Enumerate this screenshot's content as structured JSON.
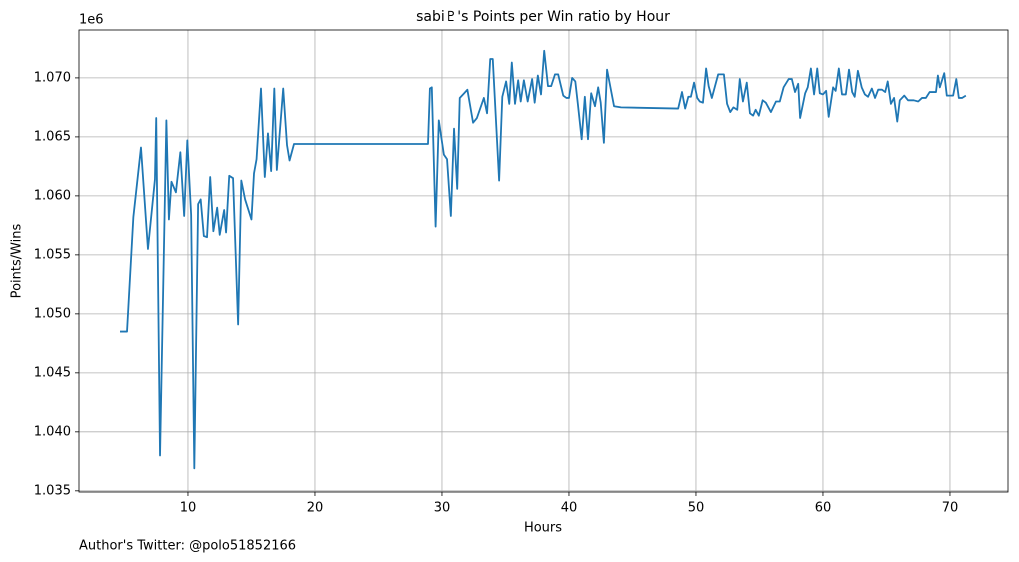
{
  "chart_data": {
    "type": "line",
    "title": "sabi♇'s Points per Win ratio by Hour",
    "x_label": "Hours",
    "y_label": "Points/Wins",
    "y_offset_label": "1e6",
    "footnote": "Author's Twitter: @polo51852166",
    "grid": true,
    "xlim": [
      1.42,
      74.57
    ],
    "ylim": [
      1.0349,
      1.07406
    ],
    "xticks": [
      10,
      20,
      30,
      40,
      50,
      60,
      70
    ],
    "yticks": [
      1.035,
      {
        "value": 1.04,
        "label": "1.040"
      },
      1.045,
      {
        "value": 1.05,
        "label": "1.050"
      },
      1.055,
      {
        "value": 1.06,
        "label": "1.060"
      },
      1.065,
      {
        "value": 1.07,
        "label": "1.070"
      }
    ],
    "series": [
      {
        "color": "#1f77b4",
        "x": [
          4.65,
          5.2,
          5.7,
          6.3,
          6.85,
          7.4,
          7.5,
          7.8,
          8.3,
          8.5,
          8.7,
          9.05,
          9.4,
          9.7,
          9.95,
          10.25,
          10.5,
          10.8,
          11.0,
          11.25,
          11.5,
          11.75,
          12.0,
          12.3,
          12.5,
          12.85,
          13.0,
          13.25,
          13.55,
          13.95,
          14.2,
          14.5,
          15.0,
          15.2,
          15.4,
          15.75,
          16.05,
          16.3,
          16.55,
          16.8,
          17.0,
          17.5,
          17.8,
          18.0,
          18.35,
          28.9,
          29.05,
          29.2,
          29.5,
          29.75,
          30.15,
          30.4,
          30.7,
          30.95,
          31.2,
          31.4,
          31.75,
          32.0,
          32.45,
          32.75,
          33.3,
          33.55,
          33.8,
          34.0,
          34.5,
          34.75,
          35.05,
          35.3,
          35.5,
          35.75,
          36.0,
          36.2,
          36.45,
          36.75,
          37.1,
          37.3,
          37.55,
          37.8,
          38.05,
          38.35,
          38.6,
          38.9,
          39.15,
          39.55,
          39.8,
          40.0,
          40.25,
          40.5,
          40.7,
          41.0,
          41.25,
          41.5,
          41.75,
          42.05,
          42.3,
          42.5,
          42.75,
          43.0,
          43.55,
          44.1,
          48.6,
          48.9,
          49.15,
          49.4,
          49.6,
          49.85,
          50.1,
          50.3,
          50.55,
          50.8,
          51.0,
          51.25,
          51.5,
          51.75,
          52.2,
          52.45,
          52.7,
          52.95,
          53.25,
          53.45,
          53.7,
          54.0,
          54.25,
          54.5,
          54.7,
          54.95,
          55.25,
          55.5,
          55.9,
          56.3,
          56.6,
          56.9,
          57.3,
          57.55,
          57.8,
          58.05,
          58.2,
          58.6,
          58.8,
          59.05,
          59.3,
          59.55,
          59.75,
          60.0,
          60.25,
          60.45,
          60.8,
          61.0,
          61.25,
          61.5,
          61.8,
          62.05,
          62.3,
          62.5,
          62.75,
          63.05,
          63.3,
          63.55,
          63.85,
          64.1,
          64.35,
          64.65,
          64.9,
          65.1,
          65.35,
          65.6,
          65.85,
          66.05,
          66.4,
          66.7,
          67.15,
          67.5,
          67.8,
          68.1,
          68.4,
          68.9,
          69.05,
          69.2,
          69.55,
          69.75,
          70.25,
          70.5,
          70.7,
          70.95,
          71.25
        ],
        "values": [
          1.0485,
          1.0485,
          1.0582,
          1.0641,
          1.0555,
          1.0614,
          1.0666,
          1.038,
          1.0664,
          1.058,
          1.0612,
          1.0603,
          1.0637,
          1.0583,
          1.0647,
          1.0584,
          1.0369,
          1.0593,
          1.0597,
          1.0566,
          1.0565,
          1.0616,
          1.057,
          1.059,
          1.0567,
          1.0588,
          1.0569,
          1.0617,
          1.0615,
          1.0491,
          1.0613,
          1.0597,
          1.058,
          1.0619,
          1.0631,
          1.0691,
          1.0616,
          1.0653,
          1.0621,
          1.0691,
          1.0622,
          1.0691,
          1.0643,
          1.063,
          1.0644,
          1.0644,
          1.0691,
          1.0692,
          1.0574,
          1.0664,
          1.0635,
          1.0631,
          1.0583,
          1.0657,
          1.0606,
          1.0683,
          1.0687,
          1.069,
          1.0662,
          1.0666,
          1.0683,
          1.067,
          1.0716,
          1.0716,
          1.0613,
          1.0684,
          1.0697,
          1.0678,
          1.0713,
          1.0678,
          1.0698,
          1.068,
          1.0698,
          1.068,
          1.0699,
          1.0679,
          1.0702,
          1.0686,
          1.0723,
          1.0693,
          1.0693,
          1.0703,
          1.0703,
          1.0685,
          1.0683,
          1.0683,
          1.07,
          1.0697,
          1.0678,
          1.0648,
          1.0684,
          1.0648,
          1.0687,
          1.0676,
          1.0692,
          1.0679,
          1.0645,
          1.0707,
          1.0676,
          1.0675,
          1.0674,
          1.0688,
          1.0674,
          1.0684,
          1.0684,
          1.0696,
          1.0683,
          1.068,
          1.0679,
          1.0708,
          1.0693,
          1.0683,
          1.0693,
          1.0703,
          1.0703,
          1.0678,
          1.0671,
          1.0675,
          1.0673,
          1.0699,
          1.068,
          1.0696,
          1.067,
          1.0668,
          1.0673,
          1.0668,
          1.0681,
          1.0679,
          1.0671,
          1.068,
          1.068,
          1.0692,
          1.0699,
          1.0699,
          1.0688,
          1.0695,
          1.0666,
          1.0687,
          1.0692,
          1.0708,
          1.0686,
          1.0708,
          1.0687,
          1.0686,
          1.0689,
          1.0667,
          1.0692,
          1.0689,
          1.0708,
          1.0686,
          1.0686,
          1.0707,
          1.0688,
          1.0684,
          1.0706,
          1.0692,
          1.0686,
          1.0684,
          1.0691,
          1.0683,
          1.069,
          1.069,
          1.0688,
          1.0697,
          1.0678,
          1.0683,
          1.0663,
          1.0681,
          1.0685,
          1.0681,
          1.0681,
          1.068,
          1.0683,
          1.0683,
          1.0688,
          1.0688,
          1.0702,
          1.0692,
          1.0704,
          1.0685,
          1.0685,
          1.0699,
          1.0683,
          1.0683,
          1.0685
        ]
      }
    ]
  }
}
